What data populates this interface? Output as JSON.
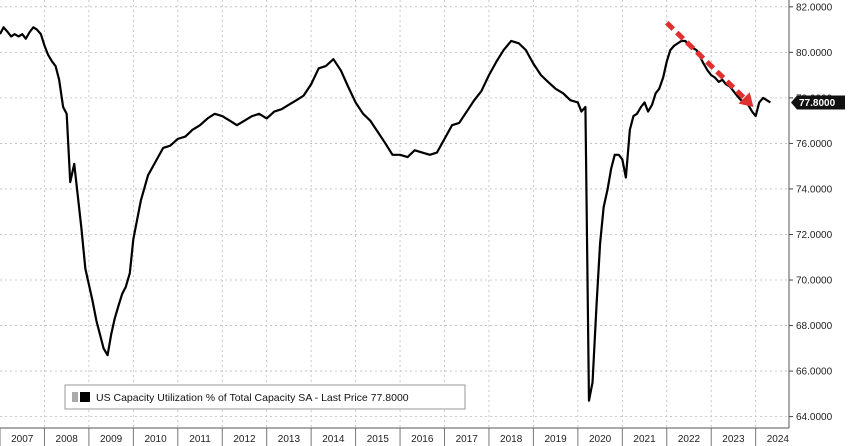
{
  "chart_data": {
    "type": "line",
    "title": "",
    "xlabel": "",
    "ylabel": "",
    "x_tick_labels": [
      "2007",
      "2008",
      "2009",
      "2010",
      "2011",
      "2012",
      "2013",
      "2014",
      "2015",
      "2016",
      "2017",
      "2018",
      "2019",
      "2020",
      "2021",
      "2022",
      "2023",
      "2024"
    ],
    "y_tick_labels": [
      "64.0000",
      "66.0000",
      "68.0000",
      "70.0000",
      "72.0000",
      "74.0000",
      "76.0000",
      "78.0000",
      "80.0000",
      "82.0000"
    ],
    "ylim": [
      63.5,
      82.3
    ],
    "xlim": [
      2007.0,
      2024.75
    ],
    "grid": true,
    "legend_position": "bottom-left",
    "last_value_label": "77.8000",
    "series": [
      {
        "name": "US Capacity Utilization % of Total Capacity SA - Last Price 77.8000",
        "color": "#000000",
        "x": [
          2007.0,
          2007.08,
          2007.17,
          2007.25,
          2007.33,
          2007.42,
          2007.5,
          2007.58,
          2007.67,
          2007.75,
          2007.83,
          2007.92,
          2008.0,
          2008.08,
          2008.17,
          2008.25,
          2008.33,
          2008.42,
          2008.5,
          2008.58,
          2008.67,
          2008.75,
          2008.83,
          2008.92,
          2009.0,
          2009.08,
          2009.17,
          2009.25,
          2009.33,
          2009.42,
          2009.5,
          2009.58,
          2009.67,
          2009.75,
          2009.83,
          2009.92,
          2010.0,
          2010.17,
          2010.33,
          2010.5,
          2010.67,
          2010.83,
          2011.0,
          2011.17,
          2011.33,
          2011.5,
          2011.67,
          2011.83,
          2012.0,
          2012.17,
          2012.33,
          2012.5,
          2012.67,
          2012.83,
          2013.0,
          2013.17,
          2013.33,
          2013.5,
          2013.67,
          2013.83,
          2014.0,
          2014.17,
          2014.33,
          2014.5,
          2014.67,
          2014.83,
          2015.0,
          2015.17,
          2015.33,
          2015.5,
          2015.67,
          2015.83,
          2016.0,
          2016.17,
          2016.33,
          2016.5,
          2016.67,
          2016.83,
          2017.0,
          2017.17,
          2017.33,
          2017.5,
          2017.67,
          2017.83,
          2018.0,
          2018.17,
          2018.33,
          2018.5,
          2018.67,
          2018.83,
          2019.0,
          2019.17,
          2019.33,
          2019.5,
          2019.67,
          2019.83,
          2020.0,
          2020.08,
          2020.17,
          2020.25,
          2020.33,
          2020.42,
          2020.5,
          2020.58,
          2020.67,
          2020.75,
          2020.83,
          2020.92,
          2021.0,
          2021.08,
          2021.17,
          2021.25,
          2021.33,
          2021.42,
          2021.5,
          2021.58,
          2021.67,
          2021.75,
          2021.83,
          2021.92,
          2022.0,
          2022.08,
          2022.17,
          2022.25,
          2022.33,
          2022.42,
          2022.5,
          2022.58,
          2022.67,
          2022.75,
          2022.83,
          2022.92,
          2023.0,
          2023.08,
          2023.17,
          2023.25,
          2023.33,
          2023.42,
          2023.5,
          2023.58,
          2023.67,
          2023.75,
          2023.83,
          2023.92,
          2024.0,
          2024.08,
          2024.17,
          2024.25,
          2024.33
        ],
        "y": [
          80.8,
          81.1,
          80.9,
          80.7,
          80.8,
          80.7,
          80.8,
          80.6,
          80.9,
          81.1,
          81.0,
          80.8,
          80.3,
          79.9,
          79.6,
          79.4,
          78.8,
          77.6,
          77.3,
          74.3,
          75.1,
          73.7,
          72.3,
          70.5,
          69.8,
          69.1,
          68.2,
          67.6,
          67.0,
          66.7,
          67.6,
          68.3,
          68.9,
          69.4,
          69.7,
          70.3,
          71.8,
          73.5,
          74.6,
          75.2,
          75.8,
          75.9,
          76.2,
          76.3,
          76.6,
          76.8,
          77.1,
          77.3,
          77.2,
          77.0,
          76.8,
          77.0,
          77.2,
          77.3,
          77.1,
          77.4,
          77.5,
          77.7,
          77.9,
          78.1,
          78.6,
          79.3,
          79.4,
          79.7,
          79.2,
          78.5,
          77.8,
          77.3,
          77.0,
          76.5,
          76.0,
          75.5,
          75.5,
          75.4,
          75.7,
          75.6,
          75.5,
          75.6,
          76.2,
          76.8,
          76.9,
          77.4,
          77.9,
          78.3,
          79.0,
          79.6,
          80.1,
          80.5,
          80.4,
          80.1,
          79.5,
          79.0,
          78.7,
          78.4,
          78.2,
          77.9,
          77.8,
          77.4,
          77.6,
          64.7,
          65.5,
          68.9,
          71.6,
          73.2,
          74.0,
          74.9,
          75.5,
          75.5,
          75.3,
          74.5,
          76.6,
          77.2,
          77.3,
          77.6,
          77.8,
          77.4,
          77.7,
          78.2,
          78.4,
          78.9,
          79.6,
          80.1,
          80.3,
          80.4,
          80.5,
          80.5,
          80.3,
          80.2,
          80.1,
          79.8,
          79.5,
          79.2,
          79.0,
          78.9,
          78.7,
          78.8,
          78.6,
          78.5,
          78.3,
          78.1,
          77.9,
          77.8,
          77.7,
          77.4,
          77.2,
          77.8,
          78.0,
          77.9,
          77.8
        ]
      }
    ],
    "trend_arrow": {
      "color": "#e03030",
      "from": {
        "x": 2022.0,
        "y": 81.3
      },
      "to": {
        "x": 2023.95,
        "y": 77.6
      }
    }
  }
}
